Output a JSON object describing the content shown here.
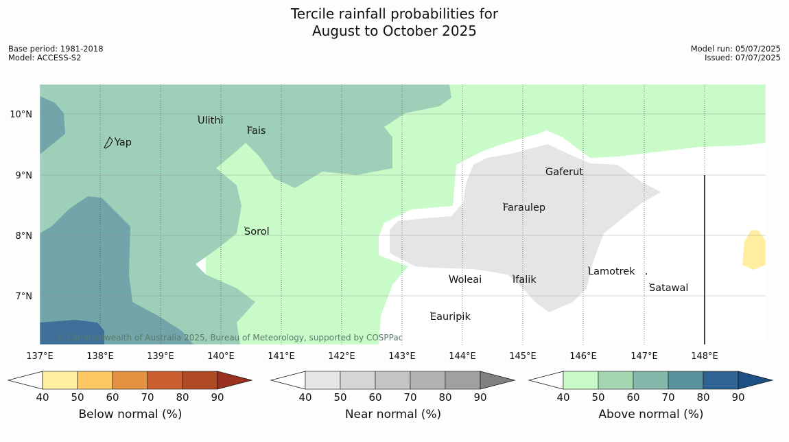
{
  "title_line1": "Tercile rainfall probabilities for",
  "title_line2": "August to October 2025",
  "base_period": "Base period: 1981-2018",
  "model": "Model: ACCESS-S2",
  "model_run": "Model run: 05/07/2025",
  "issued": "Issued: 07/07/2025",
  "copyright": "© Commonwealth of Australia 2025, Bureau of Meteorology, supported by COSPPac",
  "map": {
    "lon_labels": [
      "137°E",
      "138°E",
      "139°E",
      "140°E",
      "141°E",
      "142°E",
      "143°E",
      "144°E",
      "145°E",
      "146°E",
      "147°E",
      "148°E"
    ],
    "lat_labels": [
      "10°N",
      "9°N",
      "8°N",
      "7°N"
    ],
    "places": [
      "Ulithi",
      "Fais",
      "Yap",
      "Gaferut",
      "Faraulep",
      "Sorol",
      "Lamotrek",
      "Woleai",
      "Ifalik",
      "Satawal",
      "Eauripik"
    ]
  },
  "colorbars": [
    {
      "title": "Below normal (%)",
      "ticks": [
        "40",
        "50",
        "60",
        "70",
        "80",
        "90"
      ],
      "colors": [
        "#ffeda0",
        "#fec965",
        "#e1913f",
        "#cc5f2f",
        "#b04a25"
      ],
      "extend": "#9a3020"
    },
    {
      "title": "Near normal (%)",
      "ticks": [
        "40",
        "50",
        "60",
        "70",
        "80",
        "90"
      ],
      "colors": [
        "#e5e5e5",
        "#d6d6d6",
        "#c4c4c4",
        "#b2b2b2",
        "#a0a0a0"
      ],
      "extend": "#808080"
    },
    {
      "title": "Above normal (%)",
      "ticks": [
        "40",
        "50",
        "60",
        "70",
        "80",
        "90"
      ],
      "colors": [
        "#c8fbc8",
        "#a3d6b1",
        "#83b8ab",
        "#5a92a0",
        "#2f6394"
      ],
      "extend": "#1e4f85"
    }
  ]
}
